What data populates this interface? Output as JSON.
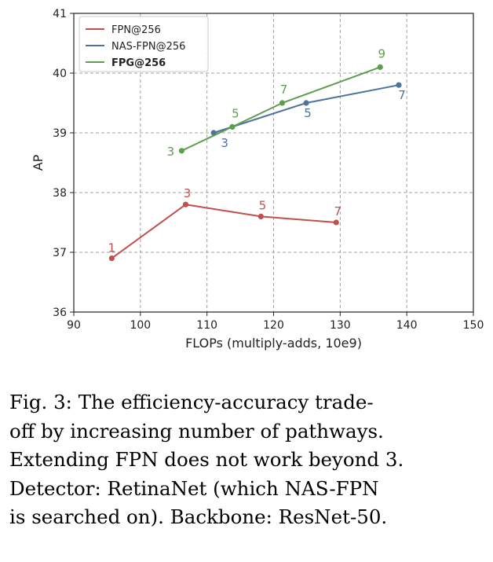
{
  "chart_data": {
    "type": "line",
    "xlabel": "FLOPs (multiply-adds, 10e9)",
    "ylabel": "AP",
    "xlim": [
      90,
      150
    ],
    "ylim": [
      36,
      41
    ],
    "xticks": [
      90,
      100,
      110,
      120,
      130,
      140,
      150
    ],
    "yticks": [
      36,
      37,
      38,
      39,
      40,
      41
    ],
    "grid": true,
    "legend_position": "top-left",
    "series": [
      {
        "name": "FPN@256",
        "color": "#c0504d",
        "bold": false,
        "points": [
          {
            "x": 95.7,
            "y": 36.9,
            "label": "1"
          },
          {
            "x": 106.8,
            "y": 37.8,
            "label": "3"
          },
          {
            "x": 118.1,
            "y": 37.6,
            "label": "5"
          },
          {
            "x": 129.4,
            "y": 37.5,
            "label": "7"
          }
        ]
      },
      {
        "name": "NAS-FPN@256",
        "color": "#4c72a0",
        "bold": false,
        "points": [
          {
            "x": 111.0,
            "y": 39.0,
            "label": "3"
          },
          {
            "x": 124.9,
            "y": 39.5,
            "label": "5"
          },
          {
            "x": 138.8,
            "y": 39.8,
            "label": "7"
          }
        ]
      },
      {
        "name": "FPG@256",
        "color": "#5c9e4f",
        "bold": true,
        "points": [
          {
            "x": 106.2,
            "y": 38.7,
            "label": "3"
          },
          {
            "x": 113.8,
            "y": 39.1,
            "label": "5"
          },
          {
            "x": 121.3,
            "y": 39.5,
            "label": "7"
          },
          {
            "x": 136.0,
            "y": 40.1,
            "label": "9"
          }
        ]
      }
    ]
  },
  "caption": {
    "lines": [
      "Fig. 3: The efficiency-accuracy trade-",
      "off by increasing number of pathways.",
      "Extending FPN does not work beyond 3.",
      "Detector: RetinaNet (which NAS-FPN",
      "is searched on). Backbone: ResNet-50."
    ]
  }
}
